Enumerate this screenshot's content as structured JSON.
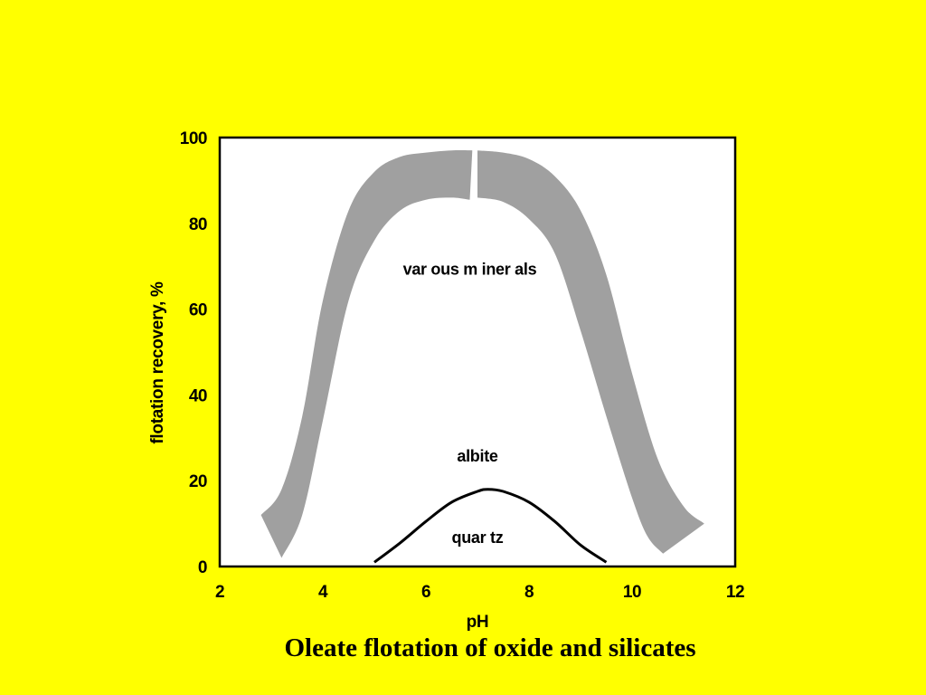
{
  "caption": "Oleate flotation of oxide and silicates",
  "colors": {
    "background": "#FFFF00",
    "plot_area": "#FFFFFF",
    "band": "#A0A0A0",
    "curve": "#000000"
  },
  "chart_data": {
    "type": "line",
    "title": "",
    "xlabel": "pH",
    "ylabel": "flotation recovery, %",
    "xlim": [
      2,
      12
    ],
    "ylim": [
      0,
      100
    ],
    "xticks": [
      2,
      4,
      6,
      8,
      10,
      12
    ],
    "yticks": [
      0,
      20,
      40,
      60,
      80,
      100
    ],
    "grid": false,
    "series": [
      {
        "name": "various minerals",
        "style": "band",
        "left_segment": {
          "upper": [
            [
              2.8,
              12
            ],
            [
              3.2,
              18
            ],
            [
              3.6,
              35
            ],
            [
              4.0,
              62
            ],
            [
              4.5,
              83
            ],
            [
              5.0,
              92
            ],
            [
              5.5,
              95.5
            ],
            [
              6.0,
              96.5
            ],
            [
              6.5,
              97
            ],
            [
              6.9,
              97
            ]
          ],
          "lower": [
            [
              3.2,
              2
            ],
            [
              3.6,
              12
            ],
            [
              4.0,
              34
            ],
            [
              4.5,
              62
            ],
            [
              5.0,
              76
            ],
            [
              5.5,
              83
            ],
            [
              6.0,
              85.5
            ],
            [
              6.5,
              86
            ],
            [
              6.85,
              85.5
            ]
          ]
        },
        "right_segment": {
          "upper": [
            [
              7.0,
              97
            ],
            [
              7.5,
              96.5
            ],
            [
              8.0,
              95
            ],
            [
              8.5,
              91
            ],
            [
              9.0,
              83
            ],
            [
              9.5,
              68
            ],
            [
              10.0,
              45
            ],
            [
              10.5,
              25
            ],
            [
              11.0,
              14
            ],
            [
              11.4,
              10
            ]
          ],
          "lower": [
            [
              7.0,
              86
            ],
            [
              7.5,
              85
            ],
            [
              8.0,
              81
            ],
            [
              8.5,
              73
            ],
            [
              9.0,
              55
            ],
            [
              9.5,
              35
            ],
            [
              10.0,
              16
            ],
            [
              10.3,
              7
            ],
            [
              10.6,
              3
            ]
          ]
        }
      },
      {
        "name": "quartz",
        "style": "line",
        "x": [
          5.0,
          5.5,
          6.0,
          6.5,
          7.0,
          7.2,
          7.5,
          8.0,
          8.5,
          9.0,
          9.5
        ],
        "y": [
          1,
          5.5,
          10.5,
          15,
          17.5,
          18,
          17.5,
          15,
          10.5,
          5,
          1
        ]
      }
    ],
    "annotations": [
      {
        "text": "var ous m iner als",
        "x": 6.85,
        "y": 68
      },
      {
        "text": "albite",
        "x": 7.0,
        "y": 24.5
      },
      {
        "text": "quar tz",
        "x": 7.0,
        "y": 5.5
      }
    ]
  }
}
